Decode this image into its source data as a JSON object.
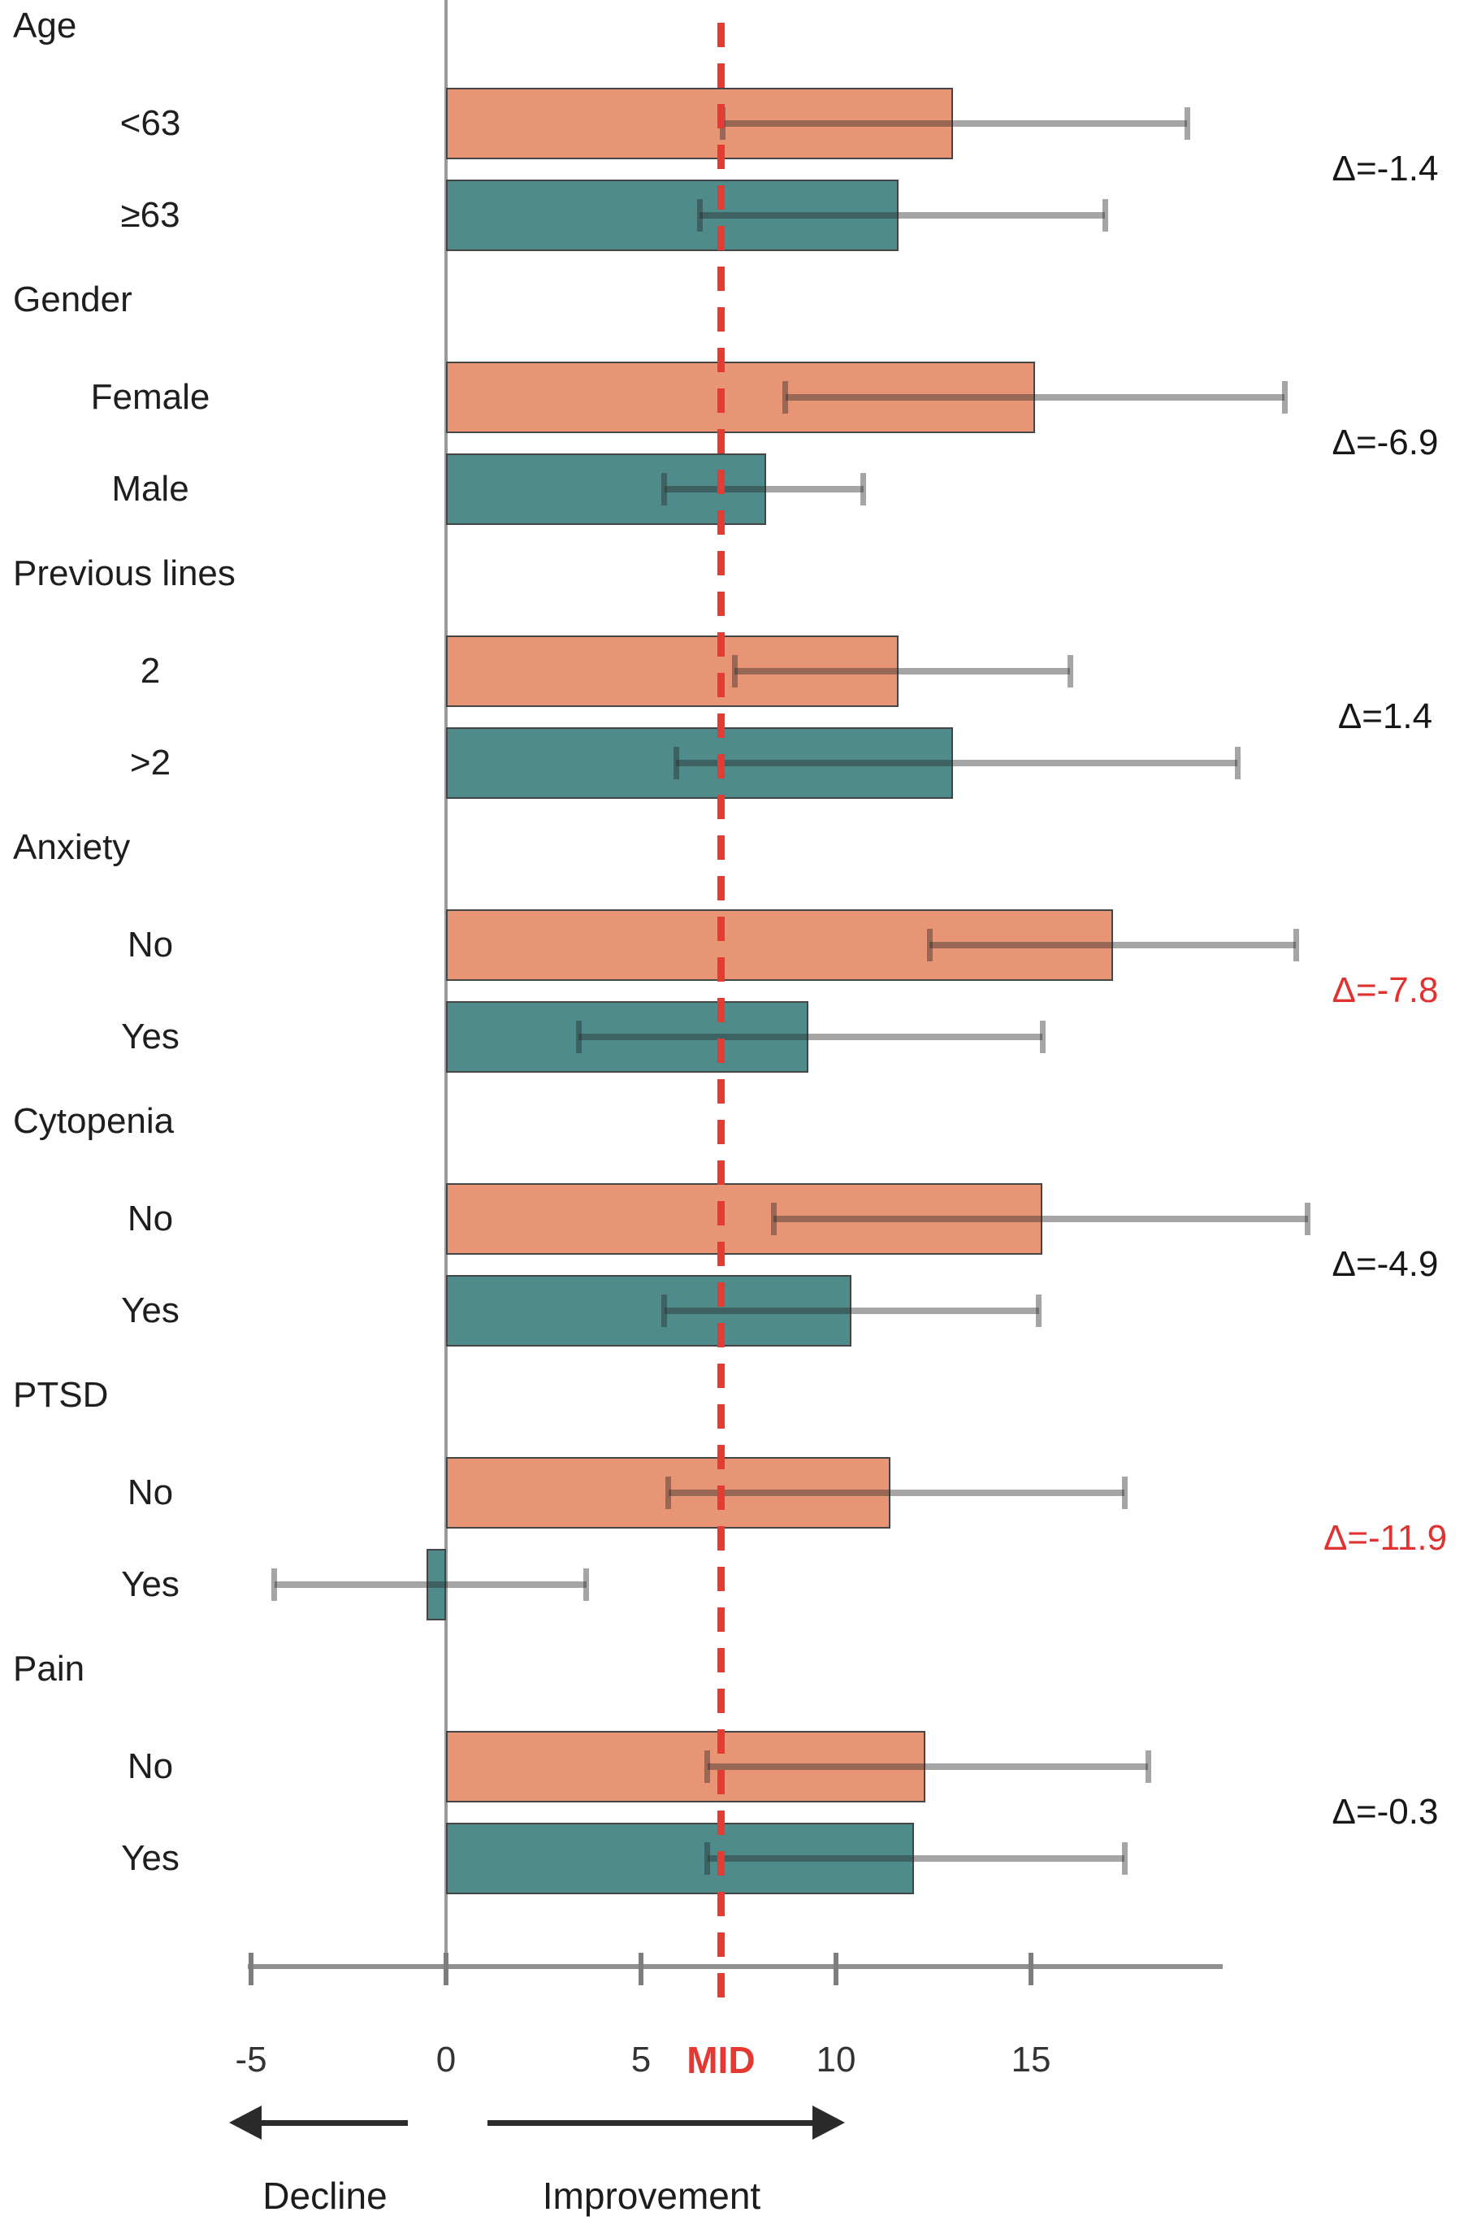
{
  "chart_data": {
    "type": "bar",
    "orientation": "horizontal",
    "x_axis": {
      "ticks": [
        -5,
        0,
        5,
        10,
        15
      ],
      "tick_labels": [
        "-5",
        "0",
        "5",
        "10",
        "15"
      ],
      "xlim": [
        -5,
        20
      ]
    },
    "mid_reference": {
      "label": "MID",
      "value": 7.05
    },
    "direction_labels": {
      "negative": "Decline",
      "positive": "Improvement"
    },
    "colors": {
      "salmon": "#e89576",
      "teal": "#4f8b8b",
      "delta_red": "#e03231",
      "delta_black": "#171717",
      "mid_line_red": "#e63b33"
    },
    "groups": [
      {
        "label": "Age",
        "delta": "Δ=-1.4",
        "delta_red": false,
        "rows": [
          {
            "label": "<63",
            "color": "salmon",
            "value": 13.0,
            "ci": [
              7.1,
              19.0
            ]
          },
          {
            "label": "≥63",
            "color": "teal",
            "value": 11.6,
            "ci": [
              6.5,
              16.9
            ]
          }
        ]
      },
      {
        "label": "Gender",
        "delta": "Δ=-6.9",
        "delta_red": false,
        "rows": [
          {
            "label": "Female",
            "color": "salmon",
            "value": 15.1,
            "ci": [
              8.7,
              21.5
            ]
          },
          {
            "label": "Male",
            "color": "teal",
            "value": 8.2,
            "ci": [
              5.6,
              10.7
            ]
          }
        ]
      },
      {
        "label": "Previous lines",
        "delta": "Δ=1.4",
        "delta_red": false,
        "rows": [
          {
            "label": "2",
            "color": "salmon",
            "value": 11.6,
            "ci": [
              7.4,
              16.0
            ]
          },
          {
            "label": ">2",
            "color": "teal",
            "value": 13.0,
            "ci": [
              5.9,
              20.3
            ]
          }
        ]
      },
      {
        "label": "Anxiety",
        "delta": "Δ=-7.8",
        "delta_red": true,
        "rows": [
          {
            "label": "No",
            "color": "salmon",
            "value": 17.1,
            "ci": [
              12.4,
              21.8
            ]
          },
          {
            "label": "Yes",
            "color": "teal",
            "value": 9.3,
            "ci": [
              3.4,
              15.3
            ]
          }
        ]
      },
      {
        "label": "Cytopenia",
        "delta": "Δ=-4.9",
        "delta_red": false,
        "rows": [
          {
            "label": "No",
            "color": "salmon",
            "value": 15.3,
            "ci": [
              8.4,
              22.1
            ]
          },
          {
            "label": "Yes",
            "color": "teal",
            "value": 10.4,
            "ci": [
              5.6,
              15.2
            ]
          }
        ]
      },
      {
        "label": "PTSD",
        "delta": "Δ=-11.9",
        "delta_red": true,
        "rows": [
          {
            "label": "No",
            "color": "salmon",
            "value": 11.4,
            "ci": [
              5.7,
              17.4
            ]
          },
          {
            "label": "Yes",
            "color": "teal",
            "value": -0.5,
            "ci": [
              -4.4,
              3.6
            ]
          }
        ]
      },
      {
        "label": "Pain",
        "delta": "Δ=-0.3",
        "delta_red": false,
        "rows": [
          {
            "label": "No",
            "color": "salmon",
            "value": 12.3,
            "ci": [
              6.7,
              18.0
            ]
          },
          {
            "label": "Yes",
            "color": "teal",
            "value": 12.0,
            "ci": [
              6.7,
              17.4
            ]
          }
        ]
      }
    ]
  }
}
